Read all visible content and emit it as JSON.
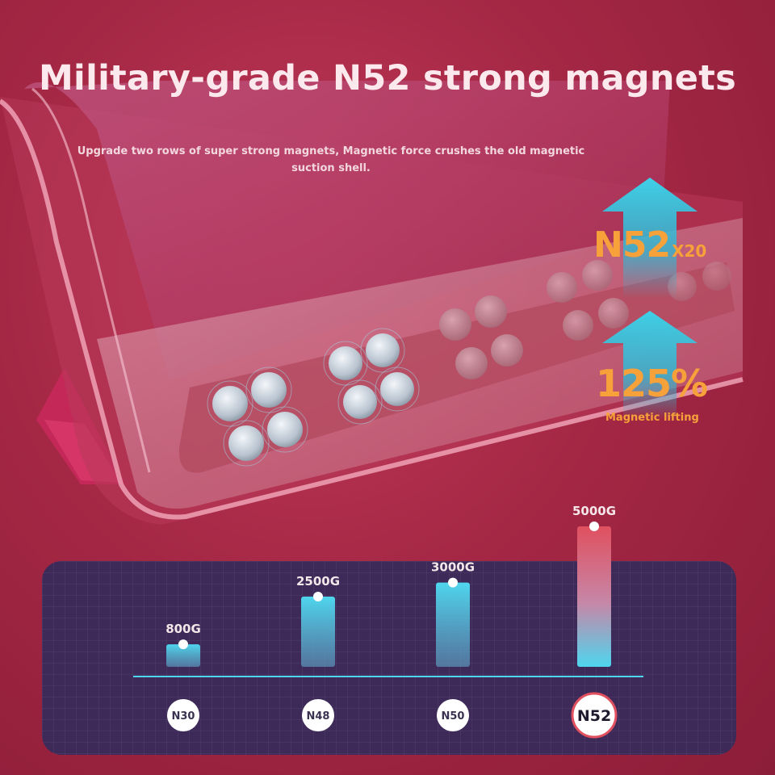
{
  "title": "Military-grade N52 strong magnets",
  "subtitle": "Upgrade two rows of super strong magnets, Magnetic force crushes the old magnetic suction shell.",
  "badges": {
    "grade": "N52",
    "multiplier": "X20",
    "percent": "125%",
    "caption": "Magnetic lifting"
  },
  "colors": {
    "accent_orange": "#f7a13a",
    "arrow_cyan": "#33c6e0",
    "bar_cyan": "#4fd6ee",
    "bar_red": "#e0505f",
    "panel_bg": "#3d2a58"
  },
  "chart_data": {
    "type": "bar",
    "categories": [
      "N30",
      "N48",
      "N50",
      "N52"
    ],
    "values": [
      800,
      2500,
      3000,
      5000
    ],
    "value_labels": [
      "800G",
      "2500G",
      "3000G",
      "5000G"
    ],
    "highlight": "N52",
    "ylim": [
      0,
      5000
    ],
    "grid": true
  }
}
